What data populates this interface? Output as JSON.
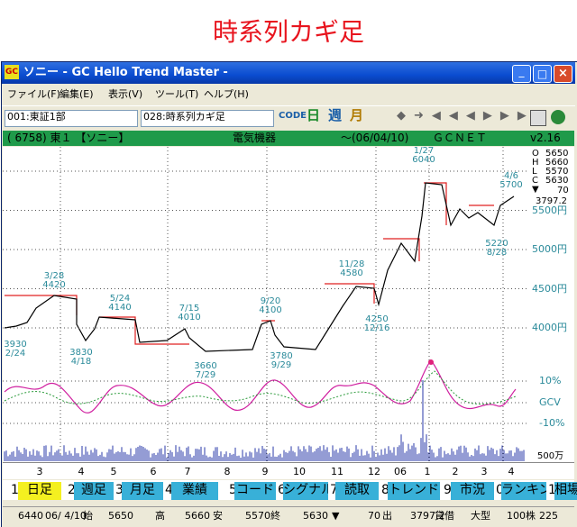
{
  "heading": "時系列カギ足",
  "window": {
    "icon": "GC",
    "title": "ソニー - GC Hello Trend Master -"
  },
  "menu": [
    "ファイル(F)",
    "編集(E)",
    "表示(V)",
    "ツール(T)",
    "ヘルプ(H)"
  ],
  "toolbar": {
    "market": "001:東証1部",
    "chart_type": "028:時系列カギ足",
    "code": "CODE",
    "periods": [
      "日",
      "週",
      "月"
    ]
  },
  "info_bar": [
    "( 6758) 東１ 【ソニー】",
    "電気機器",
    "～(06/04/10)",
    "ＧＣＮＥＴ",
    "v2.16"
  ],
  "chart": {
    "ylim": [
      3400,
      6280
    ],
    "yticks": [
      {
        "value": 5500,
        "label": "5500円"
      },
      {
        "value": 5000,
        "label": "5000円"
      },
      {
        "value": 4500,
        "label": "4500円"
      },
      {
        "value": 4000,
        "label": "4000円"
      }
    ],
    "ohlc": [
      {
        "label": "O",
        "value": 5650
      },
      {
        "label": "H",
        "value": 5660
      },
      {
        "label": "L",
        "value": 5570
      },
      {
        "label": "C",
        "value": 5630
      }
    ],
    "change": 70,
    "volume_ratio": 3797.2,
    "annotations": [
      {
        "date": "3/28",
        "price": 4420,
        "pos": "high"
      },
      {
        "date": "5/24",
        "price": 4140,
        "pos": "high"
      },
      {
        "date": "7/15",
        "price": 4010,
        "pos": "high"
      },
      {
        "date": "9/20",
        "price": 4100,
        "pos": "high"
      },
      {
        "date": "11/28",
        "price": 4580,
        "pos": "high"
      },
      {
        "date": "1/27",
        "price": 6040,
        "pos": "high"
      },
      {
        "date": "4/6",
        "price": 5700,
        "pos": "high"
      },
      {
        "date": "2/24",
        "price": 3930,
        "pos": "low"
      },
      {
        "date": "4/18",
        "price": 3830,
        "pos": "low"
      },
      {
        "date": "7/29",
        "price": 3660,
        "pos": "low"
      },
      {
        "date": "9/29",
        "price": 3780,
        "pos": "low"
      },
      {
        "date": "12/16",
        "price": 4250,
        "pos": "low"
      },
      {
        "date": "8/28",
        "price": 5220,
        "pos": "low"
      }
    ],
    "oscillator_labels": [
      "10%",
      "GCV",
      "-10%"
    ],
    "volume_label": "500万",
    "months": [
      "3",
      "4",
      "5",
      "6",
      "7",
      "8",
      "9",
      "10",
      "11",
      "12",
      "06",
      "1",
      "2",
      "3",
      "4"
    ]
  },
  "tabs": [
    {
      "key": "1",
      "label": "日足"
    },
    {
      "key": "2",
      "label": "週足"
    },
    {
      "key": "3",
      "label": "月足"
    },
    {
      "key": "4",
      "label": "業績"
    },
    {
      "key": "5",
      "label": "コード"
    },
    {
      "key": "6",
      "label": "シグナル"
    },
    {
      "key": "7",
      "label": "読取"
    },
    {
      "key": "8",
      "label": "トレンド"
    },
    {
      "key": "9",
      "label": "市況"
    },
    {
      "key": "0",
      "label": "ランキング"
    },
    {
      "key": "1",
      "label": "相場"
    }
  ],
  "status": [
    "6440",
    "06/ 4/10",
    "始",
    "5650",
    "高",
    "5660",
    "安",
    "5570",
    "終",
    "5630",
    "▼",
    "70",
    "出",
    "3797.2",
    "貸借",
    "大型",
    "100株",
    "225"
  ]
}
